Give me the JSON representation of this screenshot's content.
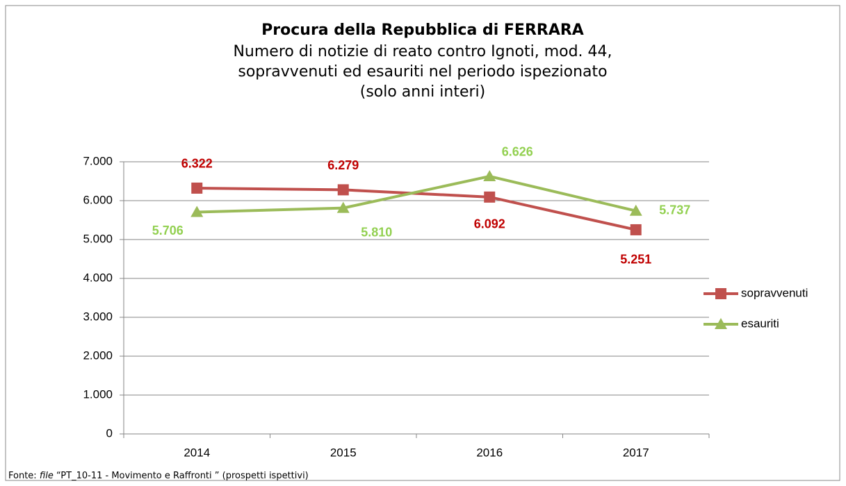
{
  "chart_data": {
    "type": "line",
    "title": "Procura della Repubblica di FERRARA",
    "subtitle": [
      "Numero di notizie di reato contro Ignoti, mod. 44,",
      "sopravvenuti ed esauriti nel periodo ispezionato",
      "(solo anni interi)"
    ],
    "categories": [
      "2014",
      "2015",
      "2016",
      "2017"
    ],
    "series": [
      {
        "name": "sopravvenuti",
        "color": "#c0504d",
        "label_color": "#c00000",
        "marker": "square",
        "values": [
          6322,
          6279,
          6092,
          5251
        ],
        "value_labels": [
          "6.322",
          "6.279",
          "6.092",
          "5.251"
        ]
      },
      {
        "name": "esauriti",
        "color": "#9bbb59",
        "label_color": "#92d050",
        "marker": "triangle",
        "values": [
          5706,
          5810,
          6626,
          5737
        ],
        "value_labels": [
          "5.706",
          "5.810",
          "6.626",
          "5.737"
        ]
      }
    ],
    "ylim": [
      0,
      7000
    ],
    "yticks": [
      0,
      {
        "value": 1000,
        "label": "1.000"
      },
      {
        "value": 2000,
        "label": "2.000"
      },
      {
        "value": 3000,
        "label": "3.000"
      },
      {
        "value": 4000,
        "label": "4.000"
      },
      {
        "value": 5000,
        "label": "5.000"
      },
      {
        "value": 6000,
        "label": "6.000"
      },
      {
        "value": 7000,
        "label": "7.000"
      }
    ],
    "grid": true,
    "legend": "right",
    "source": [
      "Fonte: ",
      "file",
      " “PT_10-11 - Movimento e Raffronti ” (prospetti ispettivi)"
    ]
  }
}
